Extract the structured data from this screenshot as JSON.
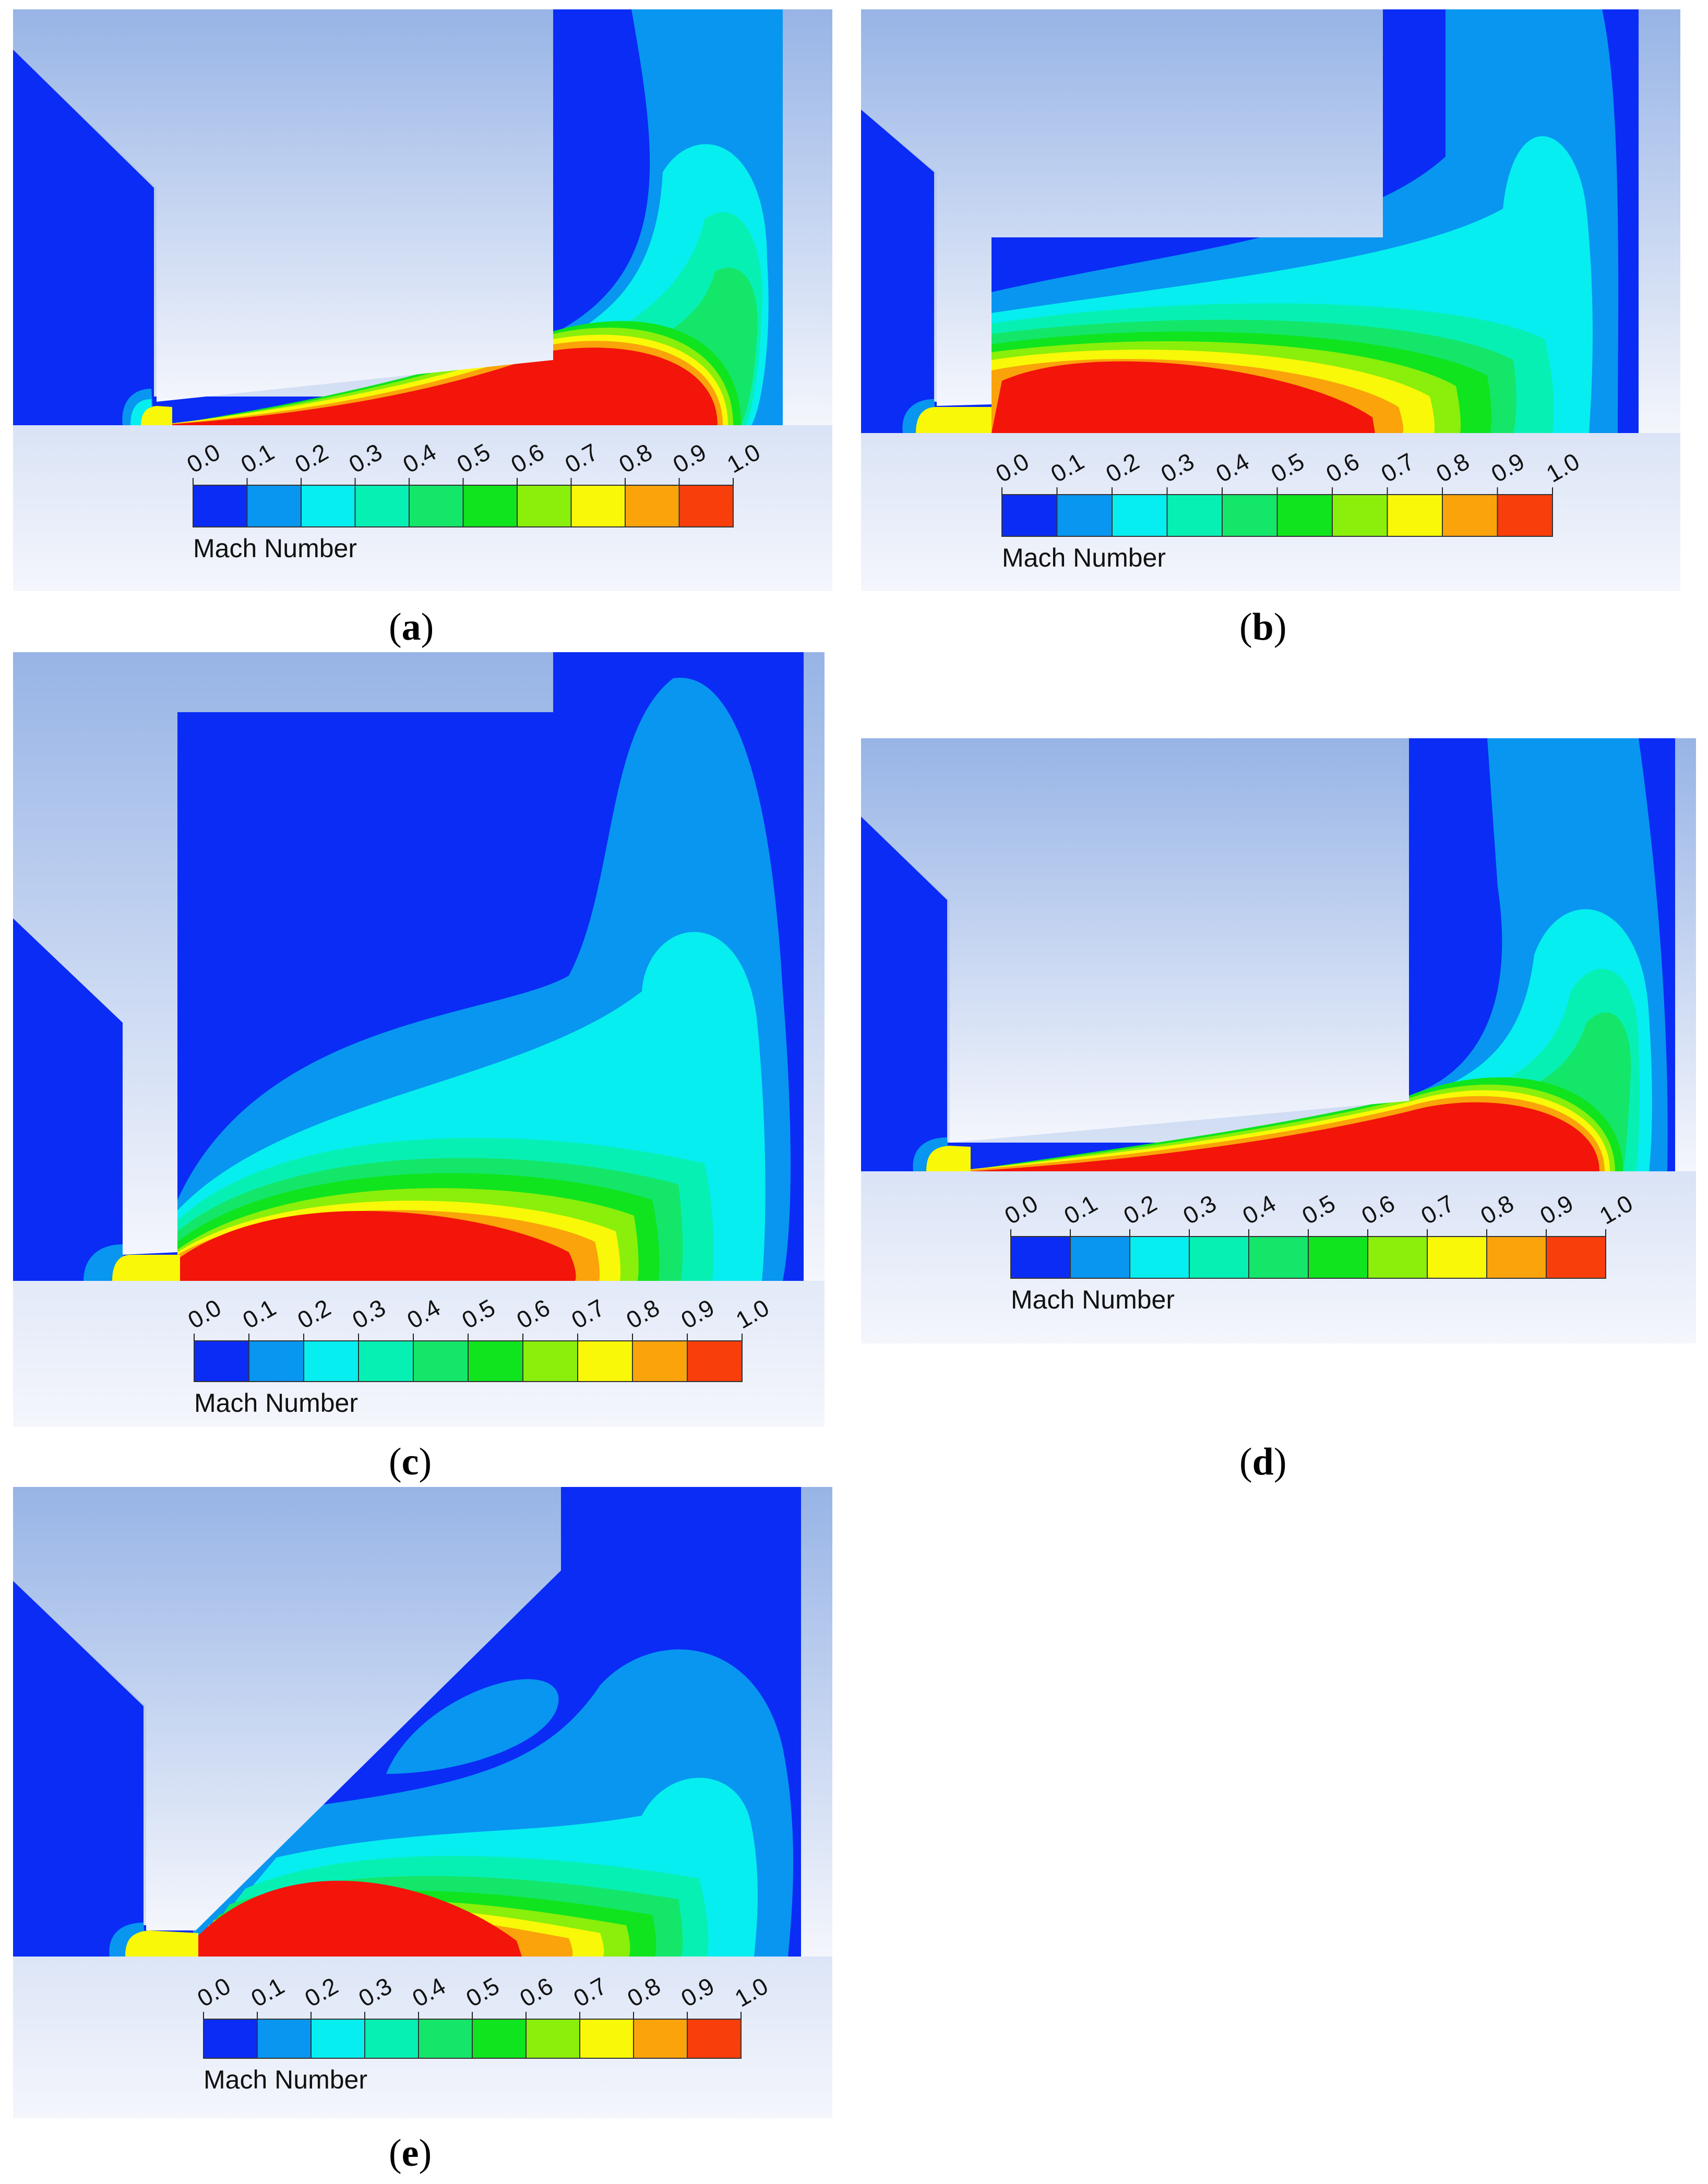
{
  "legend": {
    "title": "Mach Number",
    "ticks": [
      "0.0",
      "0.1",
      "0.2",
      "0.3",
      "0.4",
      "0.5",
      "0.6",
      "0.7",
      "0.8",
      "0.9",
      "1.0"
    ],
    "colors": [
      "#0a2cf5",
      "#0896f0",
      "#06eef0",
      "#07f0b4",
      "#14e66a",
      "#10e41e",
      "#8aef0a",
      "#f8f808",
      "#faa30a",
      "#f83e0a"
    ]
  },
  "panels": [
    {
      "id": "a",
      "caption_letter": "a"
    },
    {
      "id": "b",
      "caption_letter": "b"
    },
    {
      "id": "c",
      "caption_letter": "c"
    },
    {
      "id": "d",
      "caption_letter": "d"
    },
    {
      "id": "e",
      "caption_letter": "e"
    }
  ],
  "colors": {
    "solid_top": "#97b4e6",
    "solid_bottom": "#f4f6fc",
    "mach_0": "#0a2cf5",
    "mach_1": "#f3140a"
  }
}
